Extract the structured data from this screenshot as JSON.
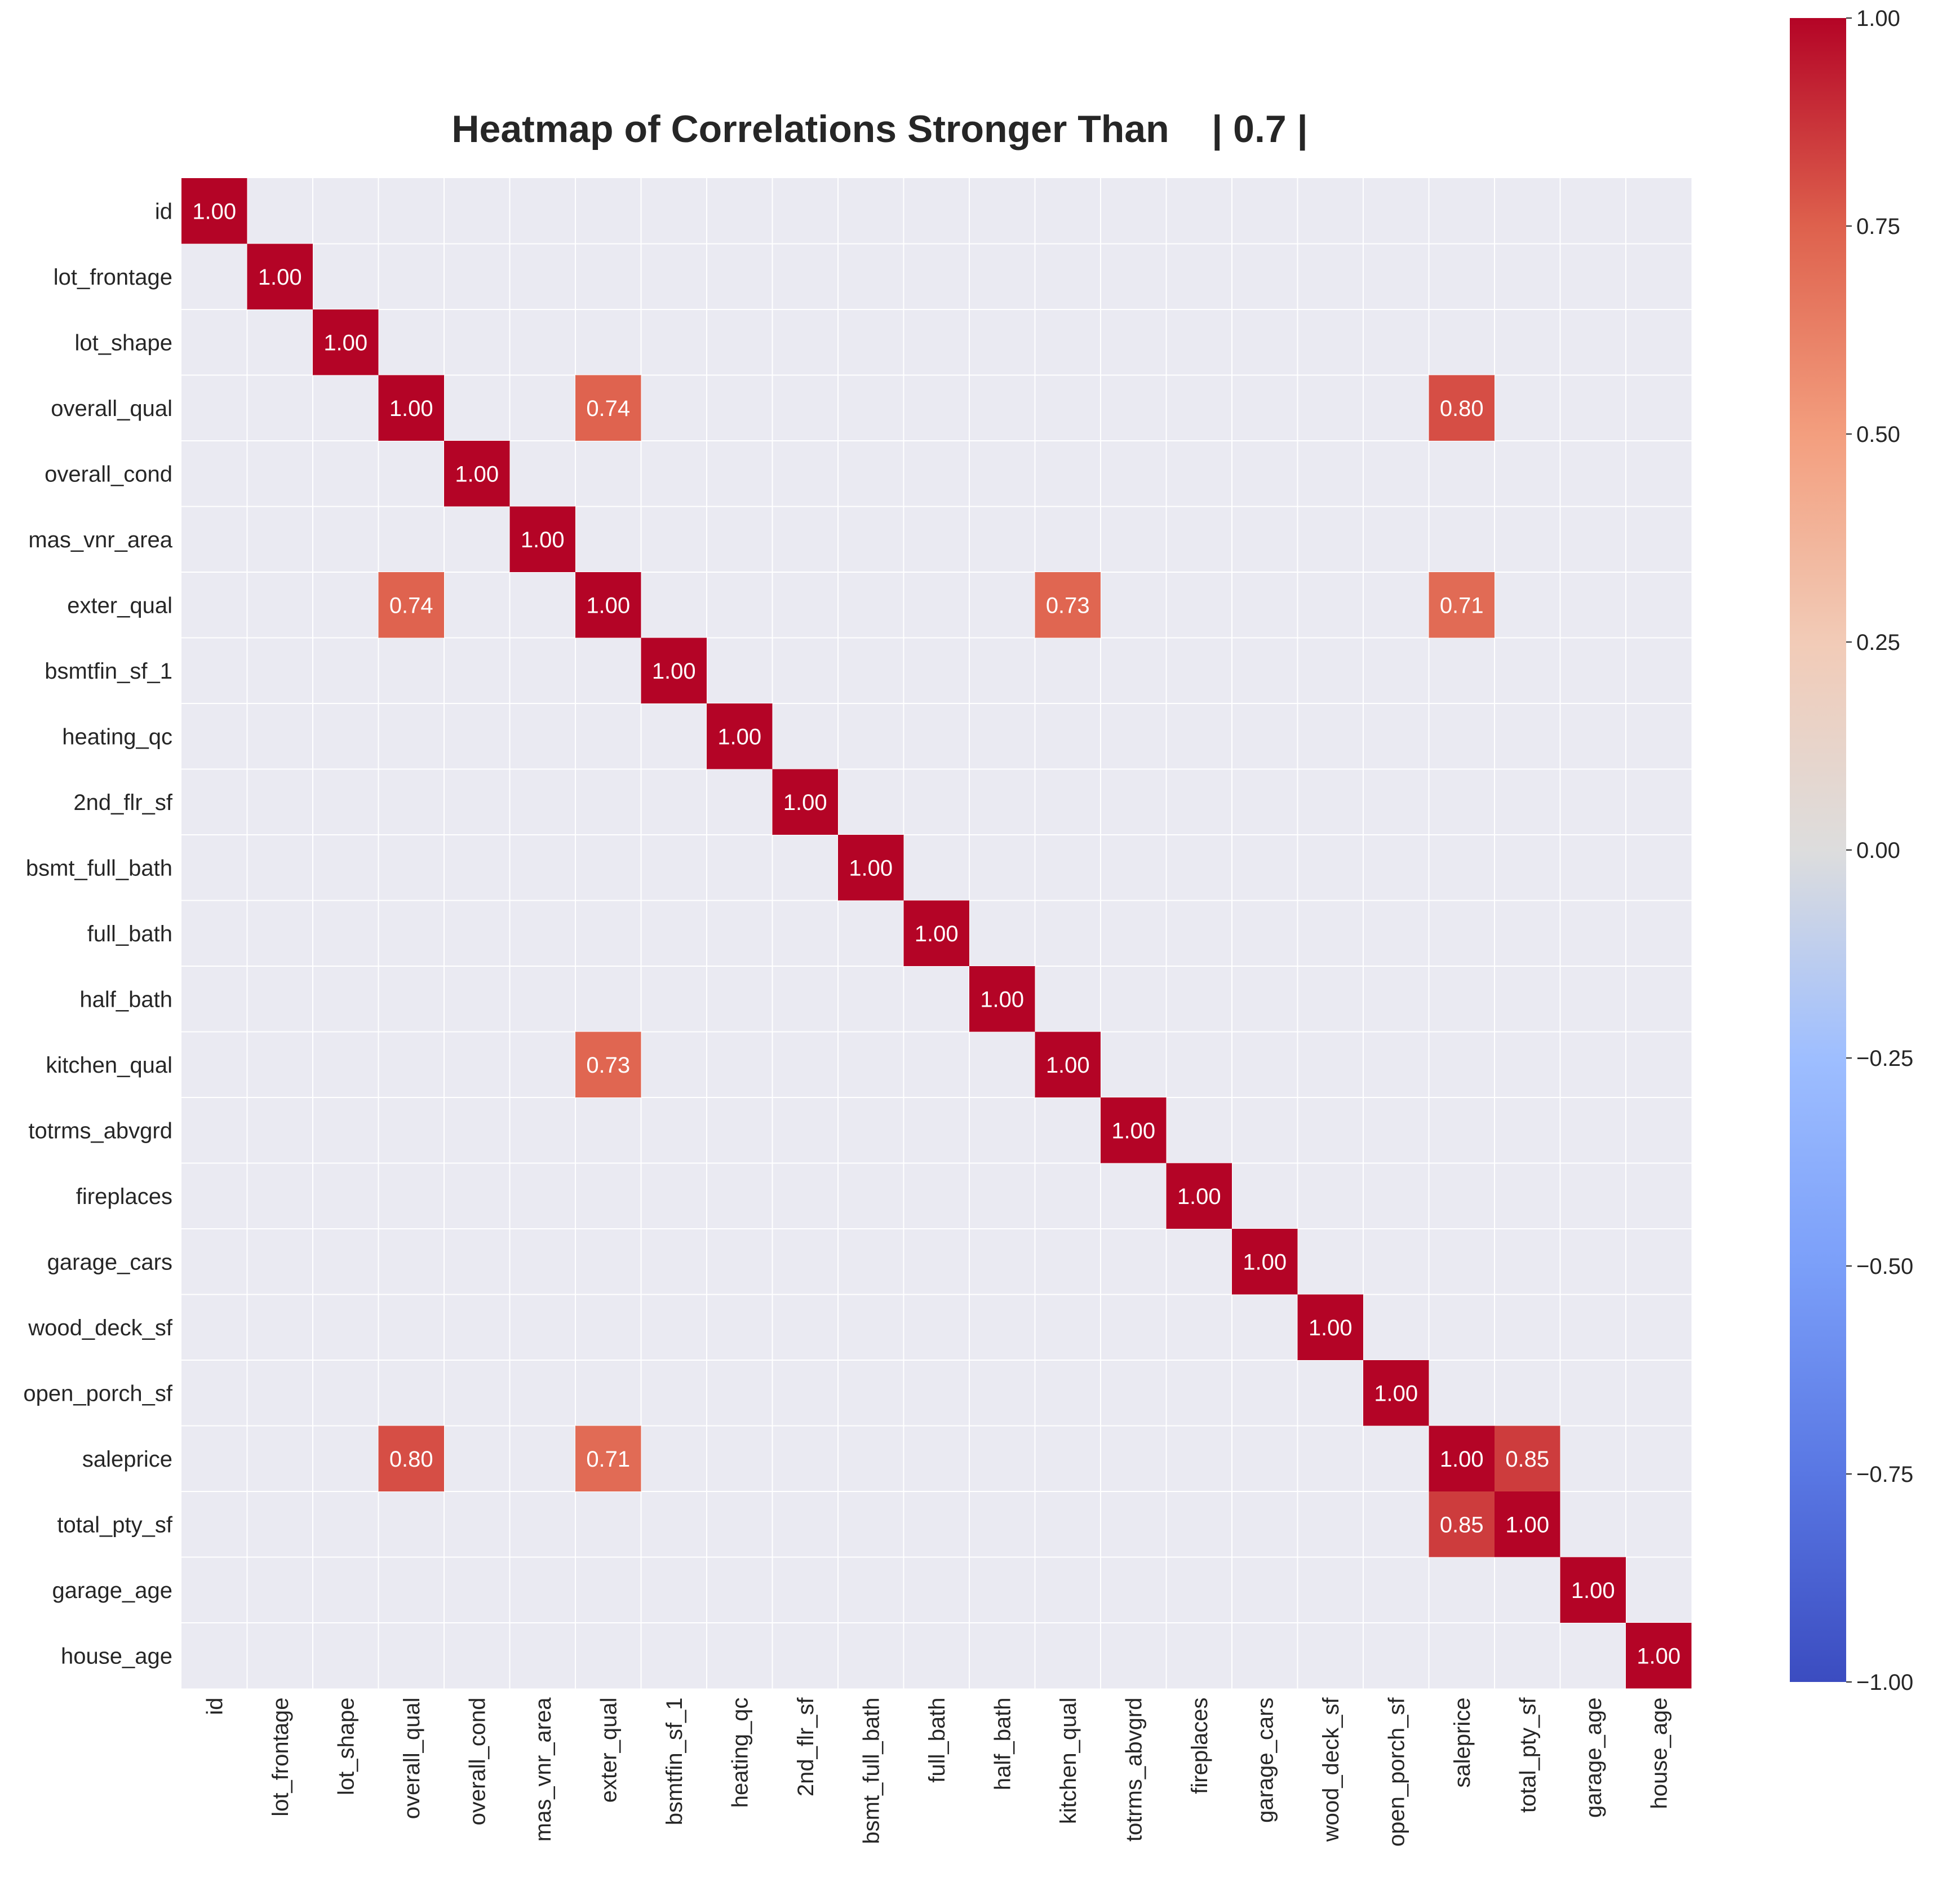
{
  "chart_data": {
    "type": "heatmap",
    "title": "Heatmap of Correlations Stronger Than    | 0.7 |",
    "variables": [
      "id",
      "lot_frontage",
      "lot_shape",
      "overall_qual",
      "overall_cond",
      "mas_vnr_area",
      "exter_qual",
      "bsmtfin_sf_1",
      "heating_qc",
      "2nd_flr_sf",
      "bsmt_full_bath",
      "full_bath",
      "half_bath",
      "kitchen_qual",
      "totrms_abvgrd",
      "fireplaces",
      "garage_cars",
      "wood_deck_sf",
      "open_porch_sf",
      "saleprice",
      "total_pty_sf",
      "garage_age",
      "house_age"
    ],
    "cells": [
      {
        "row": 0,
        "col": 0,
        "value": 1.0,
        "label": "1.00"
      },
      {
        "row": 1,
        "col": 1,
        "value": 1.0,
        "label": "1.00"
      },
      {
        "row": 2,
        "col": 2,
        "value": 1.0,
        "label": "1.00"
      },
      {
        "row": 3,
        "col": 3,
        "value": 1.0,
        "label": "1.00"
      },
      {
        "row": 3,
        "col": 6,
        "value": 0.74,
        "label": "0.74"
      },
      {
        "row": 3,
        "col": 19,
        "value": 0.8,
        "label": "0.80"
      },
      {
        "row": 4,
        "col": 4,
        "value": 1.0,
        "label": "1.00"
      },
      {
        "row": 5,
        "col": 5,
        "value": 1.0,
        "label": "1.00"
      },
      {
        "row": 6,
        "col": 3,
        "value": 0.74,
        "label": "0.74"
      },
      {
        "row": 6,
        "col": 6,
        "value": 1.0,
        "label": "1.00"
      },
      {
        "row": 6,
        "col": 13,
        "value": 0.73,
        "label": "0.73"
      },
      {
        "row": 6,
        "col": 19,
        "value": 0.71,
        "label": "0.71"
      },
      {
        "row": 7,
        "col": 7,
        "value": 1.0,
        "label": "1.00"
      },
      {
        "row": 8,
        "col": 8,
        "value": 1.0,
        "label": "1.00"
      },
      {
        "row": 9,
        "col": 9,
        "value": 1.0,
        "label": "1.00"
      },
      {
        "row": 10,
        "col": 10,
        "value": 1.0,
        "label": "1.00"
      },
      {
        "row": 11,
        "col": 11,
        "value": 1.0,
        "label": "1.00"
      },
      {
        "row": 12,
        "col": 12,
        "value": 1.0,
        "label": "1.00"
      },
      {
        "row": 13,
        "col": 6,
        "value": 0.73,
        "label": "0.73"
      },
      {
        "row": 13,
        "col": 13,
        "value": 1.0,
        "label": "1.00"
      },
      {
        "row": 14,
        "col": 14,
        "value": 1.0,
        "label": "1.00"
      },
      {
        "row": 15,
        "col": 15,
        "value": 1.0,
        "label": "1.00"
      },
      {
        "row": 16,
        "col": 16,
        "value": 1.0,
        "label": "1.00"
      },
      {
        "row": 17,
        "col": 17,
        "value": 1.0,
        "label": "1.00"
      },
      {
        "row": 18,
        "col": 18,
        "value": 1.0,
        "label": "1.00"
      },
      {
        "row": 19,
        "col": 3,
        "value": 0.8,
        "label": "0.80"
      },
      {
        "row": 19,
        "col": 6,
        "value": 0.71,
        "label": "0.71"
      },
      {
        "row": 19,
        "col": 19,
        "value": 1.0,
        "label": "1.00"
      },
      {
        "row": 19,
        "col": 20,
        "value": 0.85,
        "label": "0.85"
      },
      {
        "row": 20,
        "col": 19,
        "value": 0.85,
        "label": "0.85"
      },
      {
        "row": 20,
        "col": 20,
        "value": 1.0,
        "label": "1.00"
      },
      {
        "row": 21,
        "col": 21,
        "value": 1.0,
        "label": "1.00"
      },
      {
        "row": 22,
        "col": 22,
        "value": 1.0,
        "label": "1.00"
      }
    ],
    "colorbar": {
      "range": [
        -1.0,
        1.0
      ],
      "ticks": [
        -1.0,
        -0.75,
        -0.5,
        -0.25,
        0.0,
        0.25,
        0.5,
        0.75,
        1.0
      ],
      "tick_labels": [
        "−1.00",
        "−0.75",
        "−0.50",
        "−0.25",
        "0.00",
        "0.25",
        "0.50",
        "0.75",
        "1.00"
      ],
      "colormap": "coolwarm"
    },
    "colors": {
      "background": "#eaeaf2",
      "grid": "#ffffff",
      "low": "#3b4cc0",
      "mid": "#dddddd",
      "high": "#b40426"
    }
  }
}
